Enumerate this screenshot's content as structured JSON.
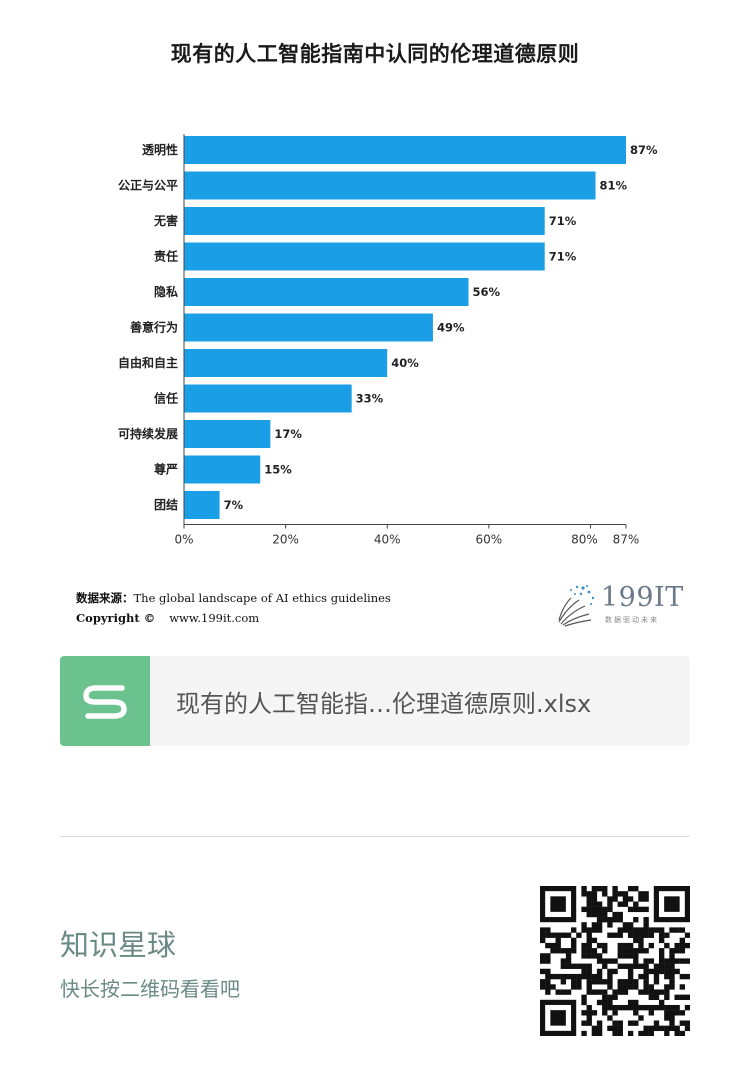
{
  "chart_data": {
    "type": "bar",
    "orientation": "horizontal",
    "title": "现有的人工智能指南中认同的伦理道德原则",
    "categories": [
      "透明性",
      "公正与公平",
      "无害",
      "责任",
      "隐私",
      "善意行为",
      "自由和自主",
      "信任",
      "可持续发展",
      "尊严",
      "团结"
    ],
    "values": [
      87,
      81,
      71,
      71,
      56,
      49,
      40,
      33,
      17,
      15,
      7
    ],
    "value_labels": [
      "87%",
      "81%",
      "71%",
      "71%",
      "56%",
      "49%",
      "40%",
      "33%",
      "17%",
      "15%",
      "7%"
    ],
    "x_ticks": [
      0,
      20,
      40,
      60,
      80,
      87
    ],
    "x_tick_labels": [
      "0%",
      "20%",
      "40%",
      "60%",
      "80%",
      "87%"
    ],
    "xlim": [
      0,
      87
    ],
    "bar_color": "#1a9fe6",
    "grid": false
  },
  "source": {
    "label": "数据来源：",
    "text": "The global landscape of AI ethics guidelines"
  },
  "copyright": {
    "label": "Copyright ©",
    "url": "www.199it.com"
  },
  "logo": {
    "brand": "199IT",
    "tagline": "数据驱动未来"
  },
  "file": {
    "icon": "s-file-icon",
    "name": "现有的人工智能指…伦理道德原则.xlsx"
  },
  "planet": {
    "title": "知识星球",
    "subtitle": "快长按二维码看看吧"
  },
  "qr": {
    "icon": "qr-code-icon"
  }
}
